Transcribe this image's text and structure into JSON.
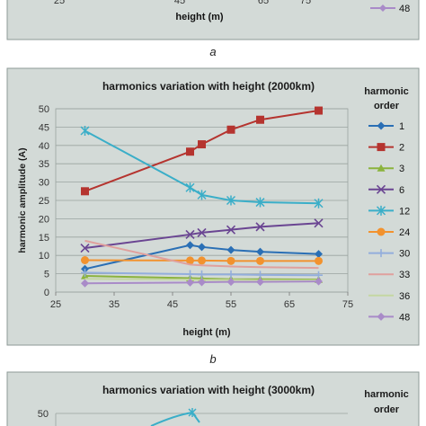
{
  "top_panel": {
    "x_ticks_partial": [
      "25",
      "45",
      "65",
      "75"
    ],
    "xlabel": "height (m)",
    "legend_last": "48",
    "caption": "a"
  },
  "chart_data": [
    {
      "type": "line",
      "title": "harmonics variation with height  (2000km)",
      "xlabel": "height (m)",
      "ylabel": "harmonic amplitude (A)",
      "xlim": [
        25,
        75
      ],
      "ylim": [
        0,
        50
      ],
      "x_ticks": [
        25,
        35,
        45,
        55,
        65,
        75
      ],
      "y_ticks": [
        0,
        5,
        10,
        15,
        20,
        25,
        30,
        35,
        40,
        45,
        50
      ],
      "grid": "horizontal",
      "legend_title": "harmonic order",
      "legend_position": "right",
      "x": [
        30,
        48,
        50,
        55,
        60,
        70
      ],
      "series": [
        {
          "name": "1",
          "color": "#2a6fb5",
          "marker": "diamond",
          "values": [
            6.3,
            12.8,
            12.3,
            11.5,
            11.0,
            10.4
          ]
        },
        {
          "name": "2",
          "color": "#b5342f",
          "marker": "square",
          "values": [
            27.5,
            38.3,
            40.3,
            44.3,
            47.0,
            49.5
          ]
        },
        {
          "name": "3",
          "color": "#8bb33d",
          "marker": "triangle",
          "values": [
            4.4,
            3.8,
            3.7,
            3.5,
            3.5,
            3.4
          ]
        },
        {
          "name": "6",
          "color": "#6a4592",
          "marker": "x",
          "values": [
            12.0,
            15.7,
            16.2,
            17.0,
            17.8,
            18.8
          ]
        },
        {
          "name": "12",
          "color": "#3aaec8",
          "marker": "star",
          "values": [
            44.0,
            28.5,
            26.5,
            25.0,
            24.5,
            24.2
          ]
        },
        {
          "name": "24",
          "color": "#f2922e",
          "marker": "circle",
          "values": [
            8.7,
            8.6,
            8.6,
            8.5,
            8.5,
            8.5
          ]
        },
        {
          "name": "30",
          "color": "#93aedc",
          "marker": "plus",
          "values": [
            5.3,
            4.9,
            4.8,
            4.8,
            4.7,
            4.6
          ]
        },
        {
          "name": "33",
          "color": "#e0a09d",
          "marker": "none",
          "values": [
            14.0,
            7.5,
            7.3,
            7.0,
            6.8,
            6.6
          ]
        },
        {
          "name": "36",
          "color": "#c4d7a2",
          "marker": "none",
          "values": [
            3.6,
            3.4,
            3.3,
            3.3,
            3.2,
            3.2
          ]
        },
        {
          "name": "48",
          "color": "#a98bc8",
          "marker": "diamond",
          "values": [
            2.4,
            2.6,
            2.7,
            2.8,
            2.8,
            2.9
          ]
        }
      ],
      "caption": "b"
    },
    {
      "type": "line",
      "title": "harmonics variation with height  (3000km)",
      "legend_title": "harmonic order",
      "y_ticks_visible": [
        50
      ],
      "partial": true
    }
  ]
}
